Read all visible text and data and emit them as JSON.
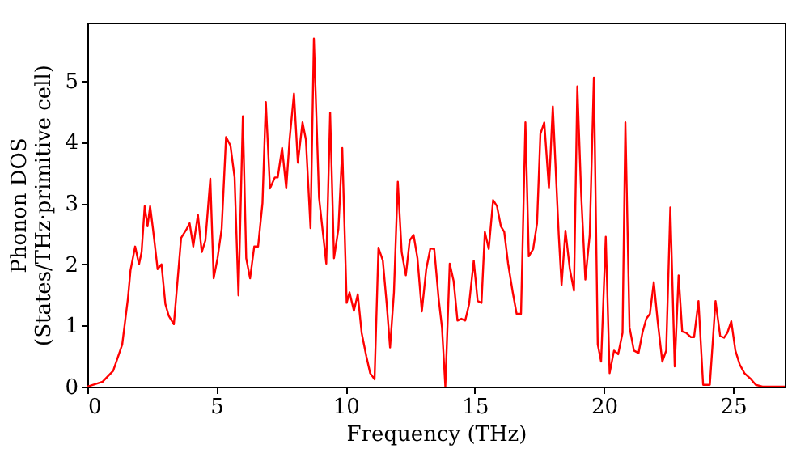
{
  "chart_data": {
    "type": "line",
    "xlabel": "Frequency (THz)",
    "ylabel": "Phonon DOS\n(States/THz·primitive cell)",
    "xlim": [
      0,
      27
    ],
    "ylim": [
      0,
      5.95
    ],
    "xticks": [
      0,
      5,
      10,
      15,
      20,
      25
    ],
    "yticks": [
      0,
      1,
      2,
      3,
      4,
      5
    ],
    "grid": false,
    "marker": "none",
    "line_style": "solid",
    "series": [
      {
        "color": "#ff0000",
        "x": [
          0,
          0.59,
          1.0,
          1.35,
          1.57,
          1.67,
          1.85,
          2.0,
          2.1,
          2.22,
          2.33,
          2.43,
          2.54,
          2.72,
          2.87,
          3.02,
          3.15,
          3.35,
          3.63,
          3.85,
          3.96,
          4.1,
          4.28,
          4.43,
          4.57,
          4.76,
          4.89,
          5.04,
          5.2,
          5.37,
          5.54,
          5.7,
          5.85,
          6.02,
          6.15,
          6.3,
          6.46,
          6.61,
          6.78,
          6.91,
          7.07,
          7.26,
          7.37,
          7.54,
          7.7,
          7.83,
          8.0,
          8.15,
          8.33,
          8.46,
          8.64,
          8.77,
          8.97,
          9.25,
          9.4,
          9.55,
          9.72,
          9.87,
          10.04,
          10.15,
          10.32,
          10.47,
          10.62,
          10.8,
          10.95,
          11.12,
          11.27,
          11.44,
          11.59,
          11.72,
          11.87,
          12.02,
          12.17,
          12.33,
          12.48,
          12.63,
          12.78,
          12.95,
          13.12,
          13.28,
          13.43,
          13.6,
          13.73,
          13.86,
          14.03,
          14.18,
          14.33,
          14.48,
          14.63,
          14.78,
          14.96,
          15.11,
          15.26,
          15.39,
          15.54,
          15.71,
          15.86,
          16.01,
          16.14,
          16.29,
          16.47,
          16.62,
          16.79,
          16.96,
          17.09,
          17.26,
          17.41,
          17.54,
          17.69,
          17.87,
          18.02,
          18.25,
          18.36,
          18.51,
          18.68,
          18.84,
          18.97,
          19.12,
          19.28,
          19.45,
          19.61,
          19.76,
          19.89,
          20.07,
          20.22,
          20.39,
          20.55,
          20.72,
          20.83,
          20.99,
          21.16,
          21.34,
          21.49,
          21.64,
          21.78,
          21.93,
          22.08,
          22.26,
          22.41,
          22.57,
          22.74,
          22.89,
          23.03,
          23.18,
          23.36,
          23.49,
          23.66,
          23.84,
          24.1,
          24.32,
          24.5,
          24.65,
          24.78,
          24.93,
          25.09,
          25.26,
          25.44,
          25.7,
          25.88,
          26.14,
          27.0
        ],
        "values": [
          0,
          0.08,
          0.26,
          0.69,
          1.44,
          1.9,
          2.29,
          2.0,
          2.2,
          2.95,
          2.62,
          2.95,
          2.58,
          1.92,
          2.0,
          1.35,
          1.16,
          1.02,
          2.43,
          2.58,
          2.67,
          2.29,
          2.81,
          2.2,
          2.39,
          3.4,
          1.77,
          2.1,
          2.58,
          4.08,
          3.94,
          3.42,
          1.49,
          4.42,
          2.1,
          1.77,
          2.29,
          2.29,
          3.0,
          4.65,
          3.24,
          3.42,
          3.42,
          3.9,
          3.24,
          4.04,
          4.79,
          3.66,
          4.32,
          4.04,
          2.59,
          5.69,
          3.09,
          2.01,
          4.48,
          2.1,
          2.58,
          3.9,
          1.37,
          1.54,
          1.24,
          1.51,
          0.88,
          0.5,
          0.22,
          0.12,
          2.27,
          2.06,
          1.35,
          0.64,
          1.54,
          3.35,
          2.2,
          1.82,
          2.39,
          2.48,
          2.1,
          1.23,
          1.92,
          2.26,
          2.25,
          1.44,
          0.97,
          0,
          2.01,
          1.73,
          1.08,
          1.11,
          1.08,
          1.35,
          2.06,
          1.4,
          1.37,
          2.53,
          2.25,
          3.05,
          2.95,
          2.62,
          2.53,
          2.01,
          1.54,
          1.19,
          1.19,
          4.32,
          2.13,
          2.25,
          2.67,
          4.13,
          4.32,
          3.24,
          4.58,
          2.48,
          1.66,
          2.55,
          1.92,
          1.57,
          4.91,
          3.14,
          1.75,
          2.48,
          5.05,
          0.69,
          0.41,
          2.45,
          0.22,
          0.59,
          0.53,
          0.88,
          4.32,
          0.97,
          0.59,
          0.55,
          0.88,
          1.11,
          1.19,
          1.71,
          1.07,
          0.41,
          0.59,
          2.93,
          0.33,
          1.82,
          0.9,
          0.88,
          0.81,
          0.81,
          1.4,
          0.03,
          0.03,
          1.4,
          0.83,
          0.8,
          0.88,
          1.07,
          0.59,
          0.36,
          0.22,
          0.12,
          0.03,
          0,
          0
        ]
      }
    ]
  }
}
